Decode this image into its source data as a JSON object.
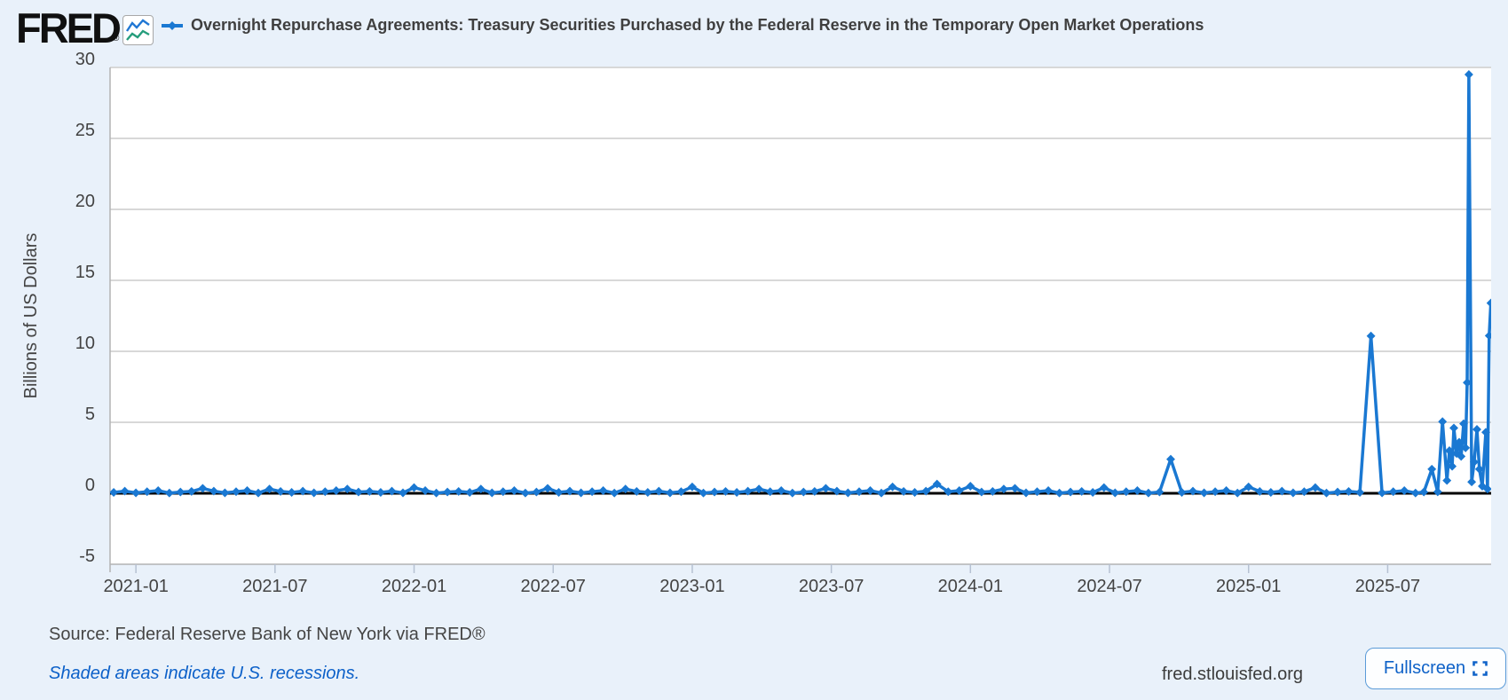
{
  "header": {
    "logo_text": "FRED",
    "registered_mark": "®",
    "series_title": "Overnight Repurchase Agreements: Treasury Securities Purchased by the Federal Reserve in the Temporary Open Market Operations"
  },
  "footer": {
    "source": "Source: Federal Reserve Bank of New York via FRED®",
    "recession_note": "Shaded areas indicate U.S. recessions.",
    "site": "fred.stlouisfed.org",
    "fullscreen_label": "Fullscreen"
  },
  "colors": {
    "page_bg": "#e9f1fa",
    "plot_bg": "#ffffff",
    "grid": "#d8d8d8",
    "axis": "#b3b3b3",
    "tick": "#b6c1d2",
    "text_dark": "#434343",
    "series_blue": "#1a78d2",
    "icon_green": "#259d7c",
    "zero_line": "#000000"
  },
  "chart_data": {
    "type": "line",
    "title": "Overnight Repurchase Agreements: Treasury Securities Purchased by the Federal Reserve in the Temporary Open Market Operations",
    "xlabel": "",
    "ylabel": "Billions of US Dollars",
    "units": "Billions of US Dollars",
    "grid": true,
    "legend_position": "none",
    "ylim": [
      -5,
      30
    ],
    "y_ticks": [
      30,
      25,
      20,
      15,
      10,
      5,
      0,
      -5
    ],
    "xlim": [
      2020.907,
      2025.872
    ],
    "x_ticks": [
      {
        "t": 2021.0,
        "label": "2021-01"
      },
      {
        "t": 2021.5,
        "label": "2021-07"
      },
      {
        "t": 2022.0,
        "label": "2022-01"
      },
      {
        "t": 2022.5,
        "label": "2022-07"
      },
      {
        "t": 2023.0,
        "label": "2023-01"
      },
      {
        "t": 2023.5,
        "label": "2023-07"
      },
      {
        "t": 2024.0,
        "label": "2024-01"
      },
      {
        "t": 2024.5,
        "label": "2024-07"
      },
      {
        "t": 2025.0,
        "label": "2025-01"
      },
      {
        "t": 2025.5,
        "label": "2025-07"
      }
    ],
    "notable_points": [
      {
        "t": 2024.72,
        "value": 2.4,
        "note": "quarter-end spike"
      },
      {
        "t": 2025.44,
        "value": 11.08,
        "note": "June 2025 spike"
      },
      {
        "t": 2025.792,
        "value": 29.5,
        "note": "late-October 2025 peak"
      },
      {
        "t": 2025.871,
        "value": 13.4,
        "note": "last observation"
      }
    ],
    "points": [
      [
        2020.92,
        0.06
      ],
      [
        2020.96,
        0.15
      ],
      [
        2021.0,
        0.03
      ],
      [
        2021.04,
        0.11
      ],
      [
        2021.08,
        0.19
      ],
      [
        2021.12,
        0.02
      ],
      [
        2021.16,
        0.09
      ],
      [
        2021.2,
        0.13
      ],
      [
        2021.24,
        0.35
      ],
      [
        2021.28,
        0.15
      ],
      [
        2021.32,
        0.03
      ],
      [
        2021.36,
        0.11
      ],
      [
        2021.4,
        0.19
      ],
      [
        2021.44,
        0.02
      ],
      [
        2021.48,
        0.3
      ],
      [
        2021.52,
        0.13
      ],
      [
        2021.56,
        0.06
      ],
      [
        2021.6,
        0.15
      ],
      [
        2021.64,
        0.03
      ],
      [
        2021.68,
        0.11
      ],
      [
        2021.72,
        0.19
      ],
      [
        2021.76,
        0.3
      ],
      [
        2021.8,
        0.09
      ],
      [
        2021.84,
        0.13
      ],
      [
        2021.88,
        0.06
      ],
      [
        2021.92,
        0.15
      ],
      [
        2021.96,
        0.03
      ],
      [
        2022.0,
        0.4
      ],
      [
        2022.04,
        0.19
      ],
      [
        2022.08,
        0.02
      ],
      [
        2022.12,
        0.09
      ],
      [
        2022.16,
        0.13
      ],
      [
        2022.2,
        0.06
      ],
      [
        2022.24,
        0.3
      ],
      [
        2022.28,
        0.03
      ],
      [
        2022.32,
        0.11
      ],
      [
        2022.36,
        0.19
      ],
      [
        2022.4,
        0.02
      ],
      [
        2022.44,
        0.09
      ],
      [
        2022.48,
        0.35
      ],
      [
        2022.52,
        0.06
      ],
      [
        2022.56,
        0.15
      ],
      [
        2022.6,
        0.03
      ],
      [
        2022.64,
        0.11
      ],
      [
        2022.68,
        0.19
      ],
      [
        2022.72,
        0.02
      ],
      [
        2022.76,
        0.3
      ],
      [
        2022.8,
        0.13
      ],
      [
        2022.84,
        0.06
      ],
      [
        2022.88,
        0.15
      ],
      [
        2022.92,
        0.03
      ],
      [
        2022.96,
        0.11
      ],
      [
        2023.0,
        0.45
      ],
      [
        2023.04,
        0.02
      ],
      [
        2023.08,
        0.09
      ],
      [
        2023.12,
        0.13
      ],
      [
        2023.16,
        0.06
      ],
      [
        2023.2,
        0.15
      ],
      [
        2023.24,
        0.3
      ],
      [
        2023.28,
        0.11
      ],
      [
        2023.32,
        0.19
      ],
      [
        2023.36,
        0.02
      ],
      [
        2023.4,
        0.09
      ],
      [
        2023.44,
        0.13
      ],
      [
        2023.48,
        0.35
      ],
      [
        2023.52,
        0.15
      ],
      [
        2023.56,
        0.03
      ],
      [
        2023.6,
        0.11
      ],
      [
        2023.64,
        0.19
      ],
      [
        2023.68,
        0.02
      ],
      [
        2023.72,
        0.45
      ],
      [
        2023.76,
        0.13
      ],
      [
        2023.8,
        0.06
      ],
      [
        2023.84,
        0.15
      ],
      [
        2023.88,
        0.65
      ],
      [
        2023.92,
        0.11
      ],
      [
        2023.96,
        0.19
      ],
      [
        2024.0,
        0.5
      ],
      [
        2024.04,
        0.09
      ],
      [
        2024.08,
        0.13
      ],
      [
        2024.12,
        0.3
      ],
      [
        2024.16,
        0.35
      ],
      [
        2024.2,
        0.03
      ],
      [
        2024.24,
        0.11
      ],
      [
        2024.28,
        0.19
      ],
      [
        2024.32,
        0.02
      ],
      [
        2024.36,
        0.09
      ],
      [
        2024.4,
        0.13
      ],
      [
        2024.44,
        0.06
      ],
      [
        2024.48,
        0.4
      ],
      [
        2024.52,
        0.03
      ],
      [
        2024.56,
        0.11
      ],
      [
        2024.6,
        0.19
      ],
      [
        2024.64,
        0.02
      ],
      [
        2024.68,
        0.09
      ],
      [
        2024.72,
        2.4
      ],
      [
        2024.76,
        0.06
      ],
      [
        2024.8,
        0.15
      ],
      [
        2024.84,
        0.03
      ],
      [
        2024.88,
        0.11
      ],
      [
        2024.92,
        0.19
      ],
      [
        2024.96,
        0.02
      ],
      [
        2025.0,
        0.45
      ],
      [
        2025.04,
        0.13
      ],
      [
        2025.08,
        0.06
      ],
      [
        2025.12,
        0.15
      ],
      [
        2025.16,
        0.03
      ],
      [
        2025.2,
        0.11
      ],
      [
        2025.24,
        0.4
      ],
      [
        2025.28,
        0.02
      ],
      [
        2025.32,
        0.09
      ],
      [
        2025.36,
        0.13
      ],
      [
        2025.4,
        0.06
      ],
      [
        2025.44,
        11.08
      ],
      [
        2025.48,
        0.03
      ],
      [
        2025.52,
        0.11
      ],
      [
        2025.56,
        0.19
      ],
      [
        2025.6,
        0.02
      ],
      [
        2025.63,
        0.09
      ],
      [
        2025.659,
        1.7
      ],
      [
        2025.68,
        0.1
      ],
      [
        2025.697,
        5.05
      ],
      [
        2025.713,
        0.9
      ],
      [
        2025.722,
        3.0
      ],
      [
        2025.732,
        1.9
      ],
      [
        2025.738,
        4.6
      ],
      [
        2025.748,
        2.8
      ],
      [
        2025.757,
        3.6
      ],
      [
        2025.764,
        2.6
      ],
      [
        2025.773,
        4.9
      ],
      [
        2025.78,
        3.2
      ],
      [
        2025.786,
        7.8
      ],
      [
        2025.792,
        29.5
      ],
      [
        2025.802,
        0.8
      ],
      [
        2025.811,
        2.2
      ],
      [
        2025.821,
        4.5
      ],
      [
        2025.83,
        1.7
      ],
      [
        2025.84,
        0.5
      ],
      [
        2025.853,
        4.3
      ],
      [
        2025.859,
        0.3
      ],
      [
        2025.865,
        11.1
      ],
      [
        2025.871,
        13.4
      ]
    ]
  }
}
